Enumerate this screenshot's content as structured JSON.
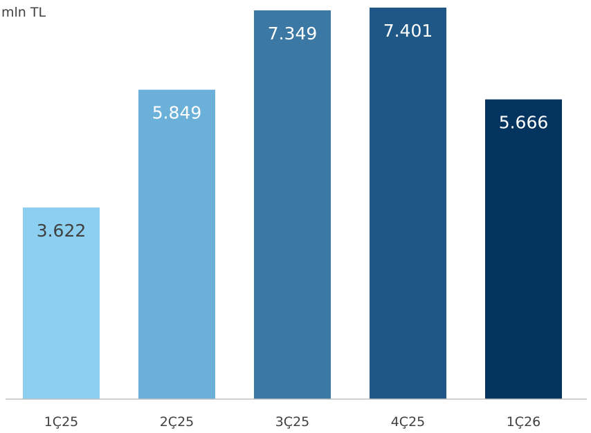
{
  "chart_data": {
    "type": "bar",
    "ylabel": "mln TL",
    "categories": [
      "1Ç25",
      "2Ç25",
      "3Ç25",
      "4Ç25",
      "1Ç26"
    ],
    "values": [
      3622,
      5849,
      7349,
      7401,
      5666
    ],
    "value_labels": [
      "3.622",
      "5.849",
      "7.349",
      "7.401",
      "5.666"
    ],
    "ylim": [
      0,
      7500
    ],
    "grid": false,
    "colors": [
      "#8DCFF0",
      "#6BB0D8",
      "#3B78A3",
      "#1F5887",
      "#03335F"
    ],
    "label_colors": [
      "#404040",
      "#ffffff",
      "#ffffff",
      "#ffffff",
      "#ffffff"
    ],
    "axis_color": "#BFBFBF"
  }
}
